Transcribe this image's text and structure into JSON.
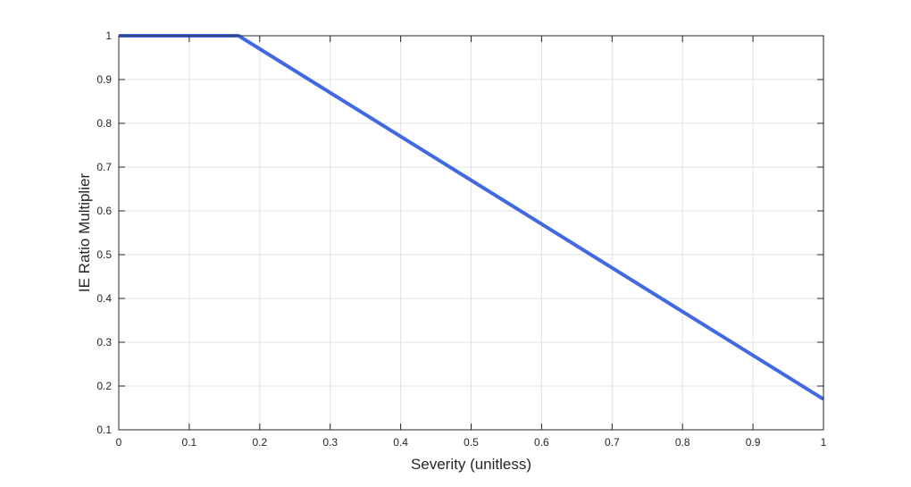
{
  "chart_data": {
    "type": "line",
    "title": "",
    "xlabel": "Severity (unitless)",
    "ylabel": "IE Ratio Multiplier",
    "xlim": [
      0,
      1
    ],
    "ylim": [
      0.1,
      1
    ],
    "xticks": [
      0,
      0.1,
      0.2,
      0.3,
      0.4,
      0.5,
      0.6,
      0.7,
      0.8,
      0.9,
      1
    ],
    "yticks": [
      0.1,
      0.2,
      0.3,
      0.4,
      0.5,
      0.6,
      0.7,
      0.8,
      0.9,
      1
    ],
    "xtick_labels": [
      "0",
      "0.1",
      "0.2",
      "0.3",
      "0.4",
      "0.5",
      "0.6",
      "0.7",
      "0.8",
      "0.9",
      "1"
    ],
    "ytick_labels": [
      "0.1",
      "0.2",
      "0.3",
      "0.4",
      "0.5",
      "0.6",
      "0.7",
      "0.8",
      "0.9",
      "1"
    ],
    "grid": true,
    "legend": "none",
    "series": [
      {
        "color": "#4169E1",
        "x": [
          0,
          0.17,
          1
        ],
        "y": [
          1,
          1,
          0.17
        ]
      }
    ]
  }
}
